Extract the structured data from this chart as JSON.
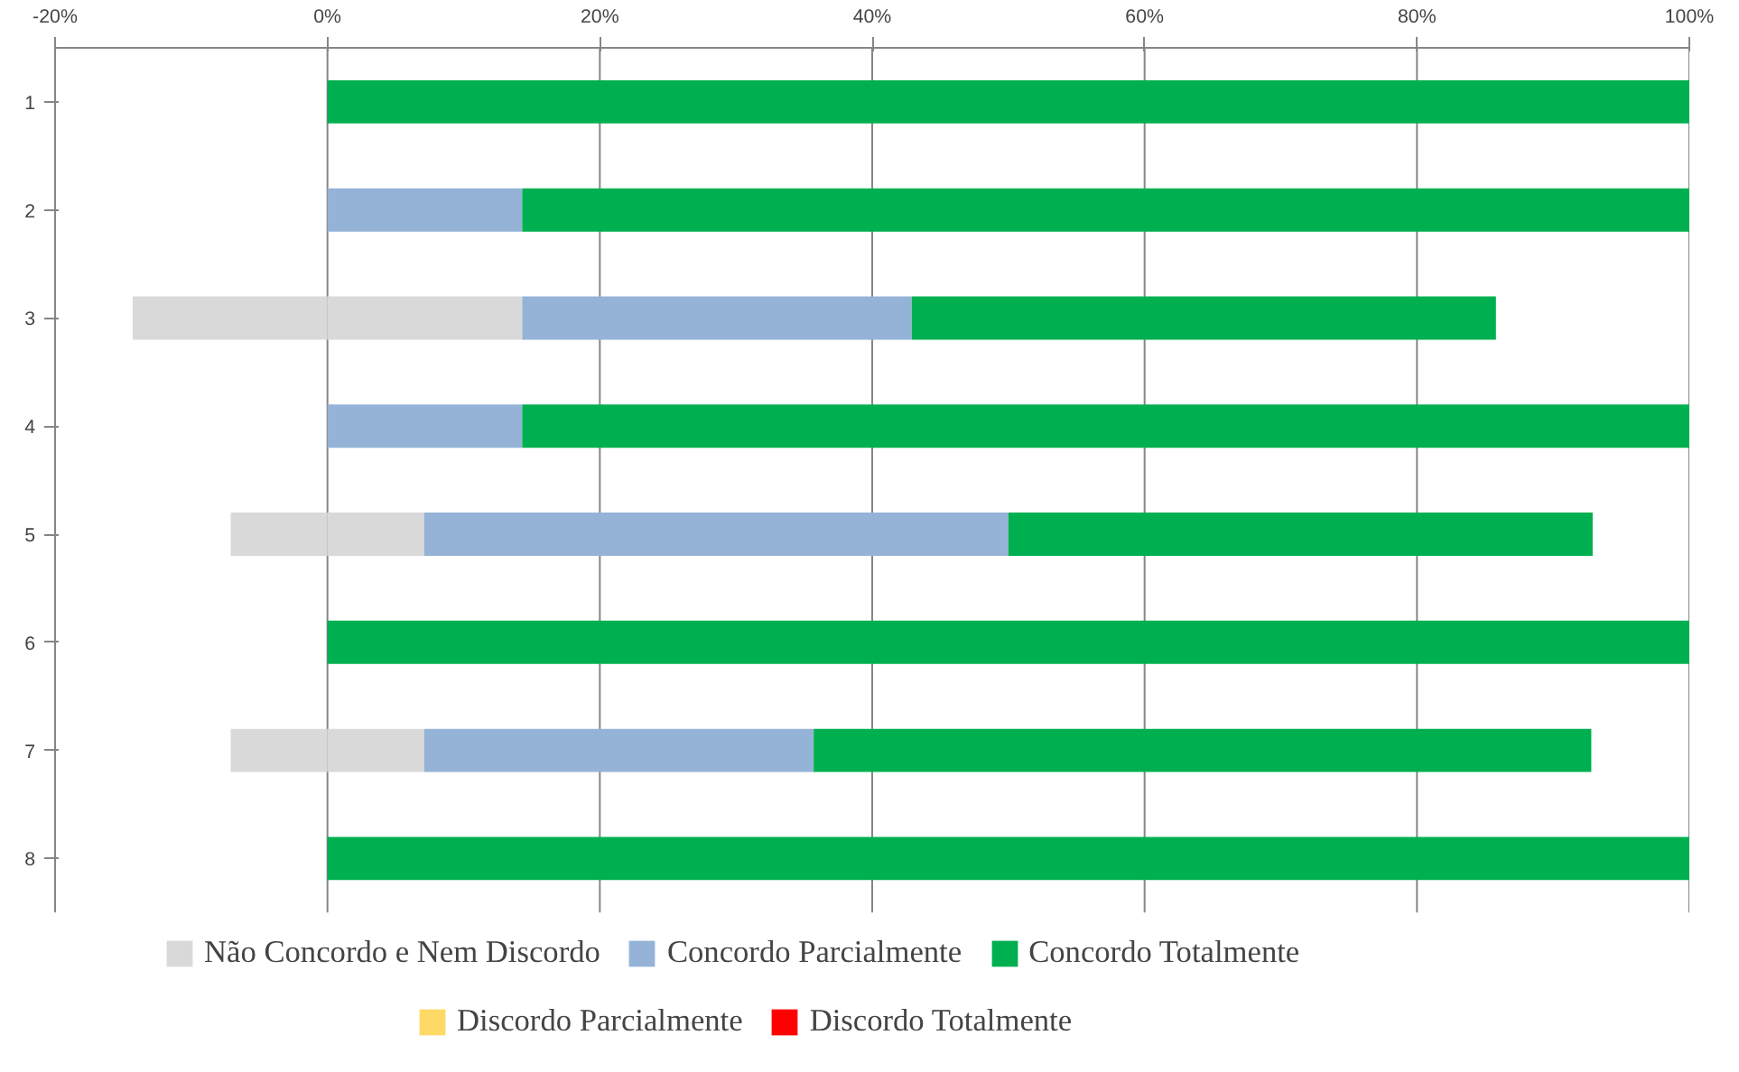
{
  "chart_data": {
    "type": "bar",
    "orientation": "horizontal",
    "stacked": true,
    "categories": [
      "1",
      "2",
      "3",
      "4",
      "5",
      "6",
      "7",
      "8"
    ],
    "series": [
      {
        "color": "#d9d9d9",
        "values": [
          0,
          0,
          -14.3,
          0,
          -7.1,
          0,
          -7.1,
          0
        ]
      },
      {
        "name": "Não Concordo e Nem Discordo",
        "color": "#d9d9d9",
        "values": [
          0,
          0,
          14.3,
          0,
          7.1,
          0,
          7.1,
          0
        ]
      },
      {
        "name": "Concordo Parcialmente",
        "color": "#95b3d7",
        "values": [
          0,
          14.3,
          28.6,
          14.3,
          42.9,
          0,
          28.6,
          0
        ]
      },
      {
        "name": "Concordo Totalmente",
        "color": "#00b050",
        "values": [
          100,
          85.7,
          42.9,
          85.7,
          42.9,
          100,
          57.1,
          100
        ]
      },
      {
        "name": "Discordo Parcialmente",
        "color": "#ffd966",
        "values": [
          0,
          0,
          0,
          0,
          0,
          0,
          0,
          0
        ]
      },
      {
        "name": "Discordo Totalmente",
        "color": "#ff0000",
        "values": [
          0,
          0,
          0,
          0,
          0,
          0,
          0,
          0
        ]
      }
    ],
    "xlim": [
      -20,
      100
    ],
    "xticks": [
      {
        "value": -20,
        "label": "-20%"
      },
      {
        "value": 0,
        "label": "0%"
      },
      {
        "value": 20,
        "label": "20%"
      },
      {
        "value": 40,
        "label": "40%"
      },
      {
        "value": 60,
        "label": "60%"
      },
      {
        "value": 80,
        "label": "80%"
      },
      {
        "value": 100,
        "label": "100%"
      }
    ],
    "grid": "x",
    "legend": "bottom"
  }
}
